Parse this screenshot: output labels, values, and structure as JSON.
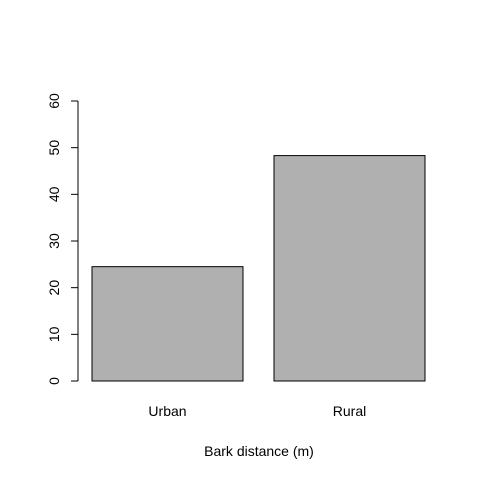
{
  "chart_data": {
    "type": "bar",
    "categories": [
      "Urban",
      "Rural"
    ],
    "values": [
      24.5,
      48.3
    ],
    "title": "",
    "xlabel": "Bark distance (m)",
    "ylabel": "",
    "ylim": [
      0,
      60
    ],
    "yticks": [
      0,
      10,
      20,
      30,
      40,
      50,
      60
    ],
    "grid": false,
    "bar_color": "#b0b0b0",
    "border_color": "#000000"
  }
}
